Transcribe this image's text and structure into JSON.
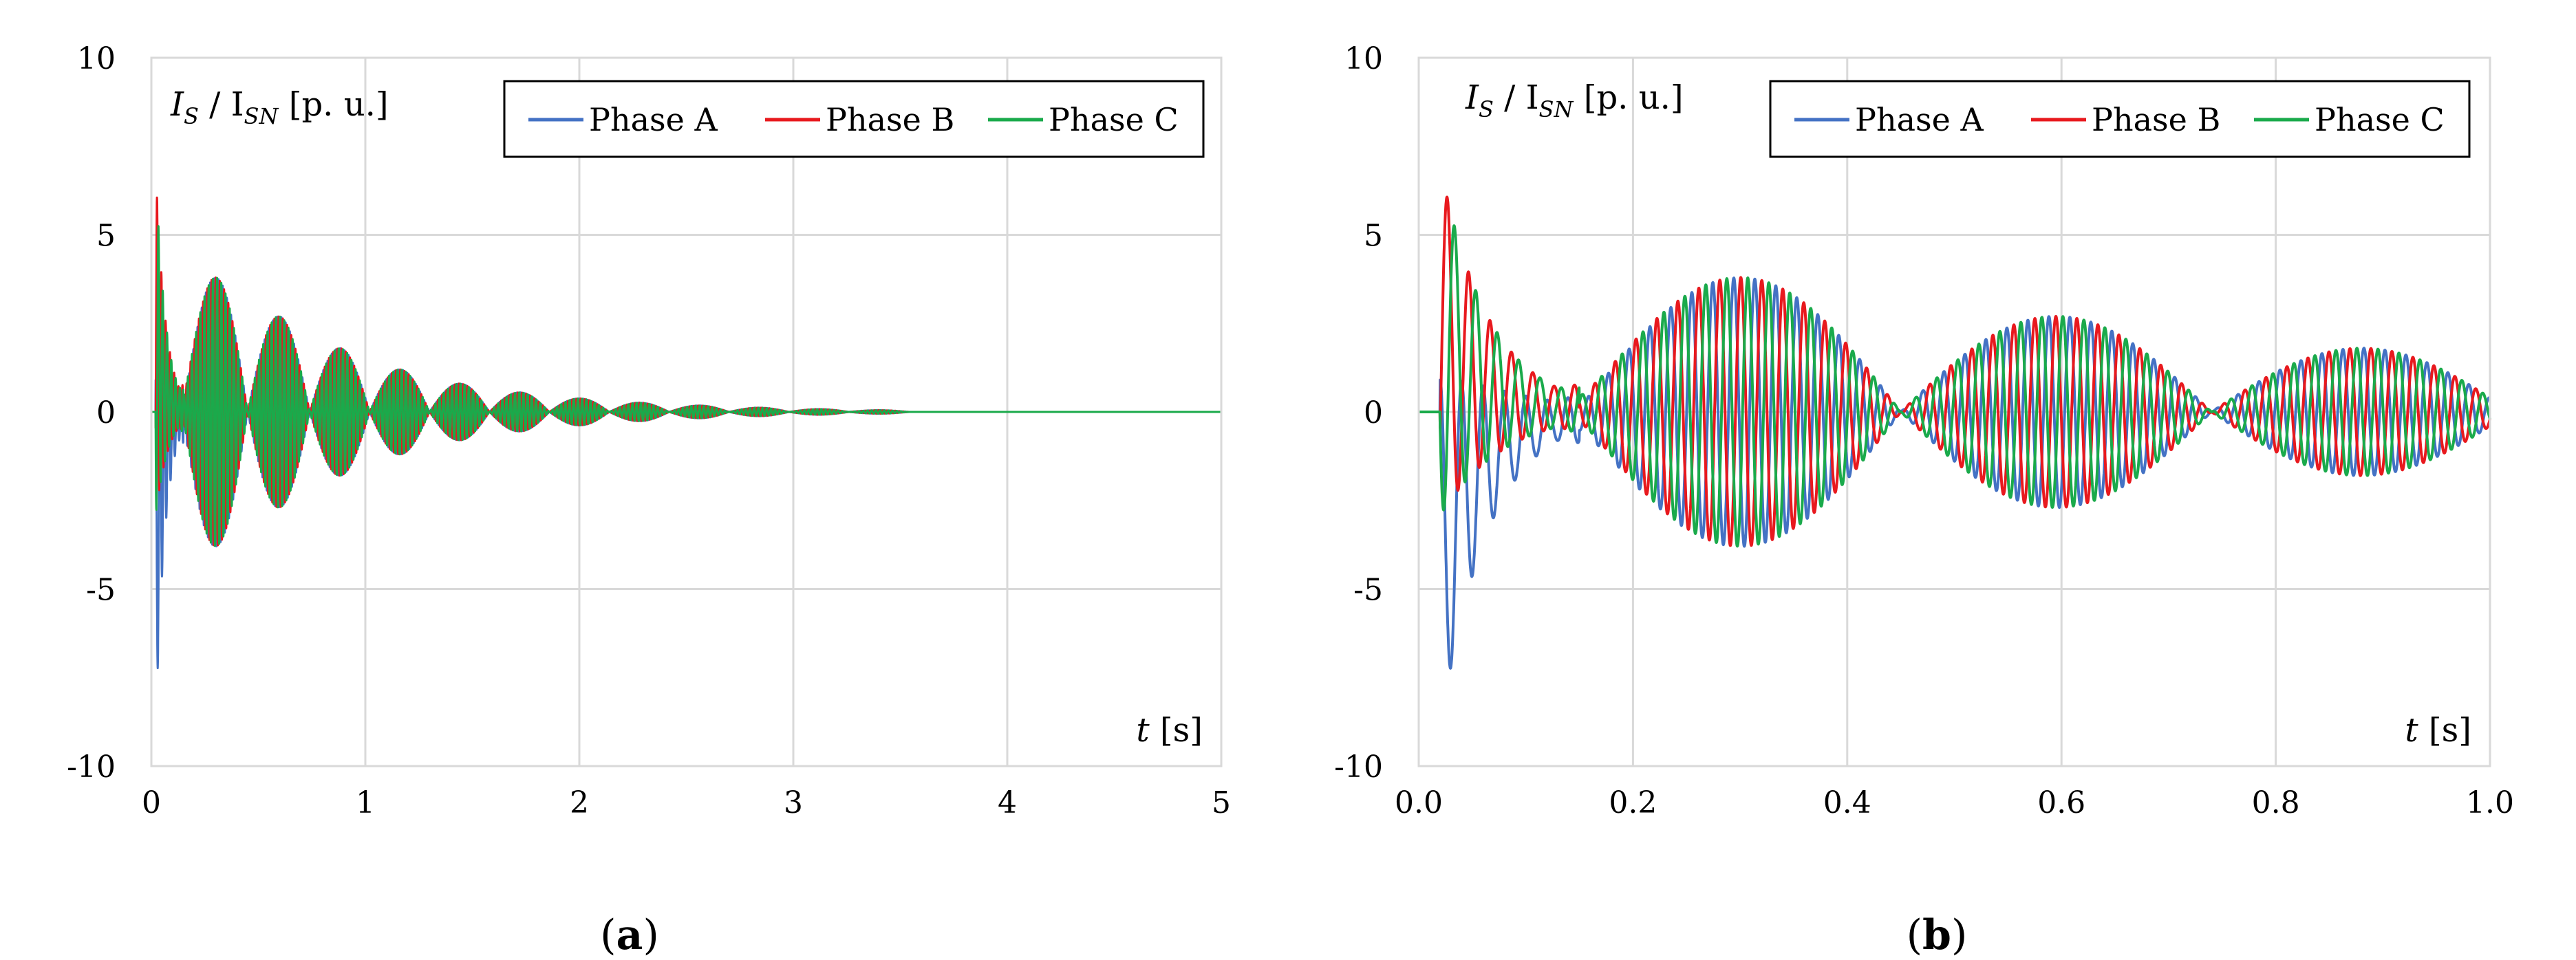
{
  "panels": [
    {
      "label_open": "(",
      "label_letter": "a",
      "label_close": ")"
    },
    {
      "label_open": "(",
      "label_letter": "b",
      "label_close": ")"
    }
  ],
  "chart_data": [
    {
      "type": "line",
      "ylabel": {
        "main": "I",
        "sub1": "S",
        "sep": " / I",
        "sub2": "SN",
        "unit": " [p. u.]"
      },
      "xlabel": {
        "var": "t",
        "unit": " [s]"
      },
      "xlim": [
        0,
        5
      ],
      "ylim": [
        -10,
        10
      ],
      "x_ticks": [
        0,
        1,
        2,
        3,
        4,
        5
      ],
      "x_tick_labels": [
        "0",
        "1",
        "2",
        "3",
        "4",
        "5"
      ],
      "y_ticks": [
        -10,
        -5,
        0,
        5,
        10
      ],
      "y_tick_labels": [
        "-10",
        "-5",
        "0",
        "5",
        "10"
      ],
      "grid": true,
      "legend_position": "top-right",
      "series": [
        {
          "name": "Phase A",
          "color": "#4472C4",
          "phase_deg": 90
        },
        {
          "name": "Phase B",
          "color": "#E8191E",
          "phase_deg": -30
        },
        {
          "name": "Phase C",
          "color": "#1AAA4B",
          "phase_deg": 210
        }
      ],
      "fault_start_s": 0.02,
      "transient_peak_pu": 9,
      "steady_envelope_peaks": [
        {
          "t": 0.3,
          "amp": 3.8
        },
        {
          "t": 0.6,
          "amp": 2.7
        },
        {
          "t": 0.88,
          "amp": 1.8
        },
        {
          "t": 1.16,
          "amp": 1.2
        },
        {
          "t": 1.44,
          "amp": 0.8
        },
        {
          "t": 1.72,
          "amp": 0.55
        },
        {
          "t": 2.0,
          "amp": 0.38
        },
        {
          "t": 2.28,
          "amp": 0.26
        },
        {
          "t": 2.56,
          "amp": 0.18
        },
        {
          "t": 2.84,
          "amp": 0.12
        },
        {
          "t": 3.12,
          "amp": 0.08
        },
        {
          "t": 3.4,
          "amp": 0.05
        }
      ]
    },
    {
      "type": "line",
      "ylabel": {
        "main": "I",
        "sub1": "S",
        "sep": " / I",
        "sub2": "SN",
        "unit": " [p. u.]"
      },
      "xlabel": {
        "var": "t",
        "unit": " [s]"
      },
      "xlim": [
        0,
        1
      ],
      "ylim": [
        -10,
        10
      ],
      "x_ticks": [
        0,
        0.2,
        0.4,
        0.6,
        0.8,
        1.0
      ],
      "x_tick_labels": [
        "0.0",
        "0.2",
        "0.4",
        "0.6",
        "0.8",
        "1.0"
      ],
      "y_ticks": [
        -10,
        -5,
        0,
        5,
        10
      ],
      "y_tick_labels": [
        "-10",
        "-5",
        "0",
        "5",
        "10"
      ],
      "grid": true,
      "legend_position": "top-right",
      "series": [
        {
          "name": "Phase A",
          "color": "#4472C4",
          "phase_deg": 90
        },
        {
          "name": "Phase B",
          "color": "#E8191E",
          "phase_deg": -30
        },
        {
          "name": "Phase C",
          "color": "#1AAA4B",
          "phase_deg": 210
        }
      ],
      "fault_start_s": 0.02,
      "transient_peak_pu": 9,
      "steady_envelope_peaks": [
        {
          "t": 0.3,
          "amp": 3.8
        },
        {
          "t": 0.6,
          "amp": 2.7
        },
        {
          "t": 0.88,
          "amp": 1.8
        }
      ]
    }
  ]
}
